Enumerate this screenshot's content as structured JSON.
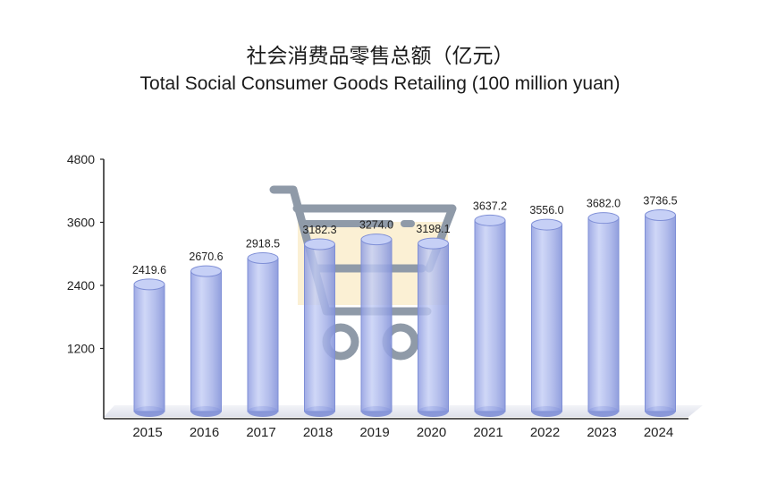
{
  "chart_data": {
    "type": "bar",
    "title": "社会消费品零售总额（亿元）",
    "subtitle": "Total Social Consumer Goods Retailing (100 million yuan)",
    "categories": [
      "2015",
      "2016",
      "2017",
      "2018",
      "2019",
      "2020",
      "2021",
      "2022",
      "2023",
      "2024"
    ],
    "values": [
      2419.6,
      2670.6,
      2918.5,
      3182.3,
      3274.0,
      3198.1,
      3637.2,
      3556.0,
      3682.0,
      3736.5
    ],
    "value_labels": [
      "2419.6",
      "2670.6",
      "2918.5",
      "3182.3",
      "3274.0",
      "3198.1",
      "3637.2",
      "3556.0",
      "3682.0",
      "3736.5"
    ],
    "ylim": [
      0,
      4800
    ],
    "yticks": [
      "1200",
      "2400",
      "3600",
      "4800"
    ],
    "xlabel": "",
    "ylabel": "",
    "grid": false,
    "bar_style": "3d-cylinder",
    "background_icon": "shopping-cart-icon",
    "colors": {
      "bar_fill": "#a9b4e6",
      "bar_edge": "#7f8fd6",
      "bar_top": "#c6d0f6",
      "cart": "#8f9aa8",
      "cart_basket": "#fbf0d4",
      "floor": "#eef0f6"
    }
  }
}
